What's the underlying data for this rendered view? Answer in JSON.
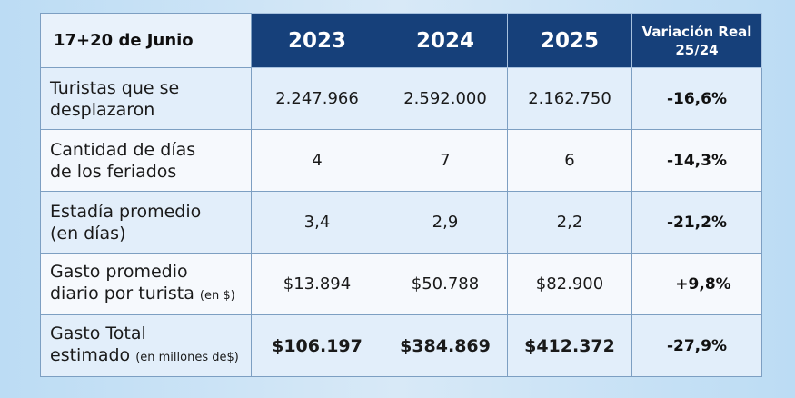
{
  "chart_data": {
    "type": "table",
    "corner_label": "17+20 de Junio",
    "columns": [
      "2023",
      "2024",
      "2025"
    ],
    "variation_header": [
      "Variación Real",
      "25/24"
    ],
    "rows": [
      {
        "label_lines": [
          "Turistas que se",
          "desplazaron"
        ],
        "label_note": "",
        "values": [
          "2.247.966",
          "2.592.000",
          "2.162.750"
        ],
        "variation": "-16,6%"
      },
      {
        "label_lines": [
          "Cantidad de días",
          "de los feriados"
        ],
        "label_note": "",
        "values": [
          "4",
          "7",
          "6"
        ],
        "variation": "-14,3%"
      },
      {
        "label_lines": [
          "Estadía promedio",
          "(en días)"
        ],
        "label_note": "",
        "values": [
          "3,4",
          "2,9",
          "2,2"
        ],
        "variation": "-21,2%"
      },
      {
        "label_lines": [
          "Gasto promedio",
          "diario por turista"
        ],
        "label_note": "(en $)",
        "values": [
          "$13.894",
          "$50.788",
          "$82.900"
        ],
        "variation": "+9,8%"
      },
      {
        "label_lines": [
          "Gasto Total",
          "estimado"
        ],
        "label_note": "(en millones de$)",
        "values": [
          "$106.197",
          "$384.869",
          "$412.372"
        ],
        "variation": "-27,9%"
      }
    ],
    "values_numeric": {
      "turistas": [
        2247966,
        2592000,
        2162750
      ],
      "dias_feriados": [
        4,
        7,
        6
      ],
      "estadia_promedio": [
        3.4,
        2.9,
        2.2
      ],
      "gasto_diario_pesos": [
        13894,
        50788,
        82900
      ],
      "gasto_total_millones": [
        106197,
        384869,
        412372
      ],
      "variacion_real_pct": [
        -16.6,
        -14.3,
        -21.2,
        9.8,
        -27.9
      ]
    }
  }
}
